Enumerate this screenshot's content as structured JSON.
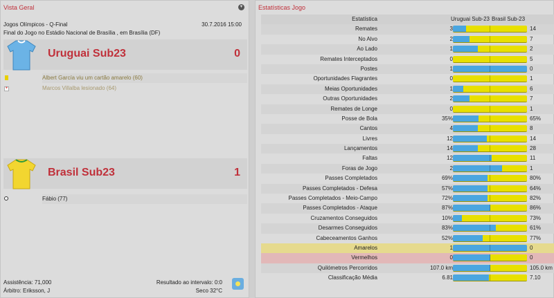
{
  "overview": {
    "title": "Vista Geral",
    "competition": "Jogos Olímpicos - Q-Final",
    "datetime": "30.7.2016 15:00",
    "venue": "Final do Jogo no Estádio Nacional de Brasília , em Brasília (DF)",
    "home": {
      "name": "Uruguai Sub23",
      "score": "0",
      "shirt_color": "#6bb3e6",
      "events": [
        {
          "icon": "yellow-card-icon",
          "text": "Albert García viu um cartão amarelo (60)"
        },
        {
          "icon": "injury-icon",
          "text": "Marcos Villalba lesionado (64)"
        }
      ]
    },
    "away": {
      "name": "Brasil Sub23",
      "score": "1",
      "shirt_color": "#f2d630",
      "events": [
        {
          "icon": "goal-ball-icon",
          "text": "Fábio (77)"
        }
      ]
    },
    "attendance": "Assistência: 71,000",
    "referee": "Árbitro: Eriksson, J",
    "halftime": "Resultado ao intervalo: 0:0",
    "weather": "Seco 32°C",
    "weather_icon": "sunny-icon"
  },
  "stats": {
    "title": "Estatísticas Jogo",
    "header": {
      "label": "Estatística",
      "home": "Uruguai Sub-23",
      "away": "Brasil Sub-23"
    },
    "colors": {
      "home": "#4aa6e0",
      "away": "#e8e000"
    },
    "rows": [
      {
        "label": "Remates",
        "home": "3",
        "away": "14"
      },
      {
        "label": "No Alvo",
        "home": "2",
        "away": "7"
      },
      {
        "label": "Ao Lado",
        "home": "1",
        "away": "2"
      },
      {
        "label": "Remates Interceptados",
        "home": "0",
        "away": "5"
      },
      {
        "label": "Postes",
        "home": "1",
        "away": "0"
      },
      {
        "label": "Oportunidades Flagrantes",
        "home": "0",
        "away": "1"
      },
      {
        "label": "Meias Oportunidades",
        "home": "1",
        "away": "6"
      },
      {
        "label": "Outras Oportunidades",
        "home": "2",
        "away": "7"
      },
      {
        "label": "Remates de Longe",
        "home": "0",
        "away": "1"
      },
      {
        "label": "Posse de Bola",
        "home": "35%",
        "away": "65%"
      },
      {
        "label": "Cantos",
        "home": "4",
        "away": "8"
      },
      {
        "label": "Livres",
        "home": "12",
        "away": "14"
      },
      {
        "label": "Lançamentos",
        "home": "14",
        "away": "28"
      },
      {
        "label": "Faltas",
        "home": "12",
        "away": "11"
      },
      {
        "label": "Foras de Jogo",
        "home": "2",
        "away": "1"
      },
      {
        "label": "Passes Completados",
        "home": "69%",
        "away": "80%"
      },
      {
        "label": "Passes Completados - Defesa",
        "home": "57%",
        "away": "64%"
      },
      {
        "label": "Passes Completados - Meio-Campo",
        "home": "72%",
        "away": "82%"
      },
      {
        "label": "Passes Completados - Ataque",
        "home": "87%",
        "away": "86%"
      },
      {
        "label": "Cruzamentos Conseguidos",
        "home": "10%",
        "away": "73%"
      },
      {
        "label": "Desarmes Conseguidos",
        "home": "83%",
        "away": "61%"
      },
      {
        "label": "Cabeceamentos Ganhos",
        "home": "52%",
        "away": "77%"
      },
      {
        "label": "Amarelos",
        "home": "1",
        "away": "0",
        "highlight": "yellow"
      },
      {
        "label": "Vermelhos",
        "home": "0",
        "away": "0",
        "highlight": "red"
      },
      {
        "label": "Quilómetros Percorridos",
        "home": "107.0 km",
        "away": "105.0 km"
      },
      {
        "label": "Classificação Média",
        "home": "6.81",
        "away": "7.10"
      }
    ]
  }
}
